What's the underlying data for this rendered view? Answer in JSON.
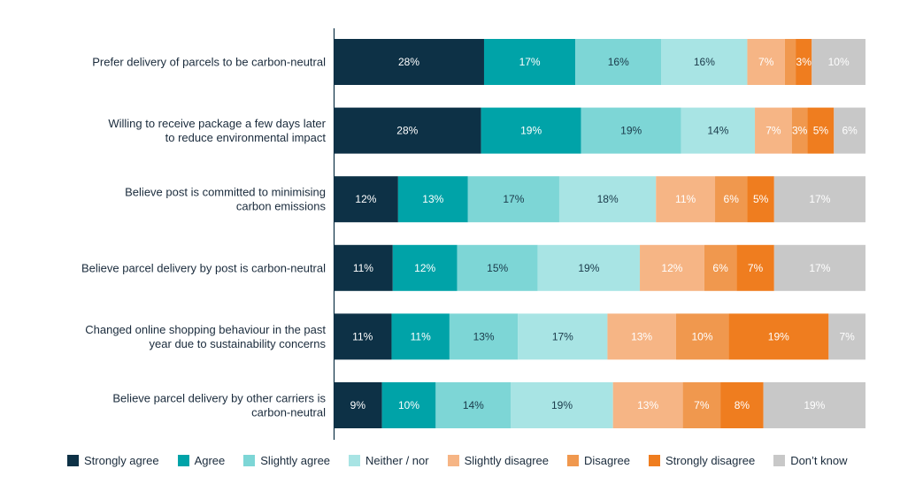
{
  "chart_data": {
    "type": "bar",
    "orientation": "horizontal",
    "stacked": "100%",
    "categories": [
      [
        "Prefer delivery of parcels to be carbon-neutral"
      ],
      [
        "Willing to receive package a few days later",
        "to reduce environmental impact"
      ],
      [
        "Believe post is committed to minimising",
        "carbon emissions"
      ],
      [
        "Believe parcel delivery by post is carbon-neutral"
      ],
      [
        "Changed online shopping behaviour in the past",
        "year due to sustainability concerns"
      ],
      [
        "Believe parcel delivery by other carriers is",
        "carbon-neutral"
      ]
    ],
    "series": [
      {
        "name": "Strongly agree",
        "color": "#0d3146",
        "label_color": "#ffffff",
        "values": [
          28,
          28,
          12,
          11,
          11,
          9
        ]
      },
      {
        "name": "Agree",
        "color": "#00a3a8",
        "label_color": "#ffffff",
        "values": [
          17,
          19,
          13,
          12,
          11,
          10
        ]
      },
      {
        "name": "Slightly agree",
        "color": "#7dd6d6",
        "label_color": "#1a3a4a",
        "values": [
          16,
          19,
          17,
          15,
          13,
          14
        ]
      },
      {
        "name": "Neither / nor",
        "color": "#a8e4e4",
        "label_color": "#1a3a4a",
        "values": [
          16,
          14,
          18,
          19,
          17,
          19
        ]
      },
      {
        "name": "Slightly disagree",
        "color": "#f6b585",
        "label_color": "#ffffff",
        "values": [
          7,
          7,
          11,
          12,
          13,
          13
        ]
      },
      {
        "name": "Disagree",
        "color": "#f0984e",
        "label_color": "#ffffff",
        "values": [
          2,
          3,
          6,
          6,
          10,
          7
        ]
      },
      {
        "name": "Strongly disagree",
        "color": "#ef7d1f",
        "label_color": "#ffffff",
        "values": [
          3,
          5,
          5,
          7,
          19,
          8
        ]
      },
      {
        "name": "Don’t know",
        "color": "#c8c8c8",
        "label_color": "#ffffff",
        "values": [
          10,
          6,
          17,
          17,
          7,
          19
        ]
      }
    ],
    "hidden_labels": [
      [
        0,
        5
      ]
    ],
    "label_suffix": "%",
    "xlim": [
      0,
      100
    ],
    "grid": false,
    "legend_position": "bottom"
  }
}
